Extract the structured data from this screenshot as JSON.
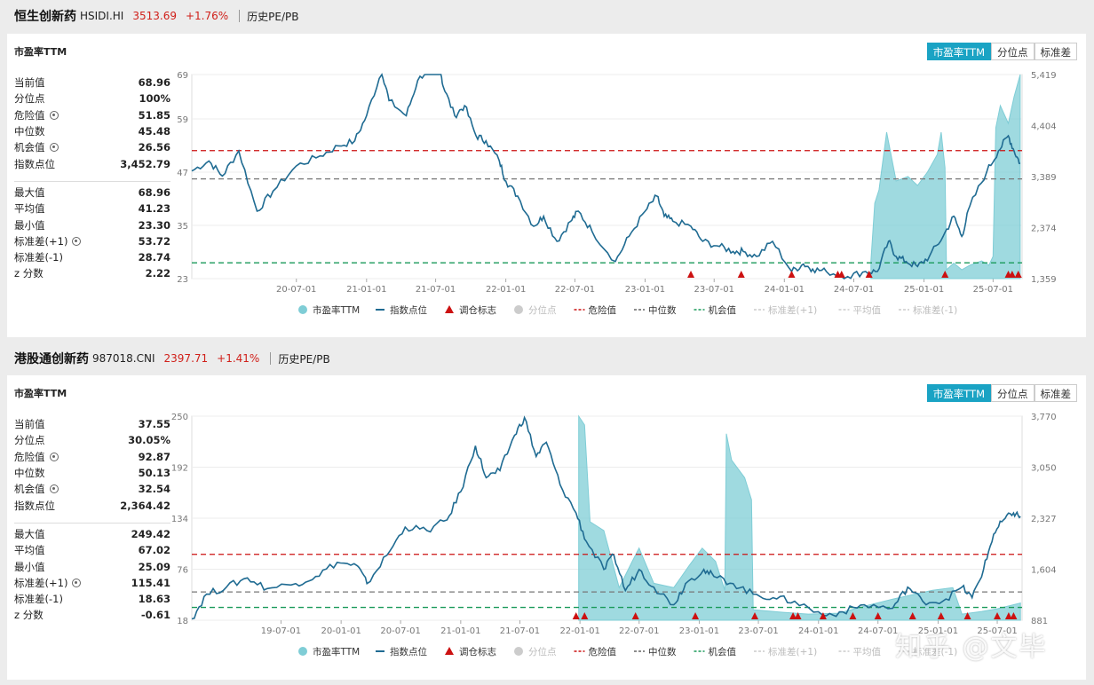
{
  "panels": [
    {
      "header": {
        "name": "恒生创新药",
        "code": "HSIDI.HI",
        "price": "3513.69",
        "change": "+1.76%",
        "history": "历史PE/PB"
      },
      "title": "市盈率TTM",
      "tabs": [
        "市盈率TTM",
        "分位点",
        "标准差"
      ],
      "stats_top": [
        {
          "label": "当前值",
          "value": "68.96",
          "gear": false
        },
        {
          "label": "分位点",
          "value": "100%",
          "gear": false
        },
        {
          "label": "危险值",
          "value": "51.85",
          "gear": true
        },
        {
          "label": "中位数",
          "value": "45.48",
          "gear": false
        },
        {
          "label": "机会值",
          "value": "26.56",
          "gear": true
        },
        {
          "label": "指数点位",
          "value": "3,452.79",
          "gear": false
        }
      ],
      "stats_bottom": [
        {
          "label": "最大值",
          "value": "68.96",
          "gear": false
        },
        {
          "label": "平均值",
          "value": "41.23",
          "gear": false
        },
        {
          "label": "最小值",
          "value": "23.30",
          "gear": false
        },
        {
          "label": "标准差(+1)",
          "value": "53.72",
          "gear": true
        },
        {
          "label": "标准差(-1)",
          "value": "28.74",
          "gear": false
        },
        {
          "label": "z 分数",
          "value": "2.22",
          "gear": false
        }
      ]
    },
    {
      "header": {
        "name": "港股通创新药",
        "code": "987018.CNI",
        "price": "2397.71",
        "change": "+1.41%",
        "history": "历史PE/PB"
      },
      "title": "市盈率TTM",
      "tabs": [
        "市盈率TTM",
        "分位点",
        "标准差"
      ],
      "stats_top": [
        {
          "label": "当前值",
          "value": "37.55",
          "gear": false
        },
        {
          "label": "分位点",
          "value": "30.05%",
          "gear": false
        },
        {
          "label": "危险值",
          "value": "92.87",
          "gear": true
        },
        {
          "label": "中位数",
          "value": "50.13",
          "gear": false
        },
        {
          "label": "机会值",
          "value": "32.54",
          "gear": true
        },
        {
          "label": "指数点位",
          "value": "2,364.42",
          "gear": false
        }
      ],
      "stats_bottom": [
        {
          "label": "最大值",
          "value": "249.42",
          "gear": false
        },
        {
          "label": "平均值",
          "value": "67.02",
          "gear": false
        },
        {
          "label": "最小值",
          "value": "25.09",
          "gear": false
        },
        {
          "label": "标准差(+1)",
          "value": "115.41",
          "gear": true
        },
        {
          "label": "标准差(-1)",
          "value": "18.63",
          "gear": false
        },
        {
          "label": "z 分数",
          "value": "-0.61",
          "gear": false
        }
      ]
    }
  ],
  "legend": [
    {
      "label": "市盈率TTM",
      "kind": "dot",
      "color": "#7fcdd6",
      "muted": false
    },
    {
      "label": "指数点位",
      "kind": "line",
      "color": "#1f6b92",
      "muted": false
    },
    {
      "label": "调仓标志",
      "kind": "tri",
      "color": "#cc1111",
      "muted": false
    },
    {
      "label": "分位点",
      "kind": "dot",
      "color": "#cccccc",
      "muted": true
    },
    {
      "label": "危险值",
      "kind": "dash",
      "color": "#cc1111",
      "muted": false
    },
    {
      "label": "中位数",
      "kind": "dash",
      "color": "#666666",
      "muted": false
    },
    {
      "label": "机会值",
      "kind": "dash",
      "color": "#1a9a5a",
      "muted": false
    },
    {
      "label": "标准差(+1)",
      "kind": "dash",
      "color": "#cccccc",
      "muted": true
    },
    {
      "label": "平均值",
      "kind": "dash",
      "color": "#cccccc",
      "muted": true
    },
    {
      "label": "标准差(-1)",
      "kind": "dash",
      "color": "#cccccc",
      "muted": true
    }
  ],
  "watermark": "知乎 @文毕",
  "chart_data": [
    {
      "type": "line",
      "pe_color": "#7fcdd6",
      "index_color": "#1f6b92",
      "x_ticks": [
        "20-07-01",
        "21-01-01",
        "21-07-01",
        "22-01-01",
        "22-07-01",
        "23-01-01",
        "23-07-01",
        "24-01-01",
        "24-07-01",
        "25-01-01",
        "25-07-01"
      ],
      "xlim": [
        "2019-10-01",
        "2025-09-15"
      ],
      "ylim_left": [
        23,
        69
      ],
      "left_ticks": [
        "69",
        "59",
        "47",
        "35",
        "23"
      ],
      "left_tick_values": [
        69,
        59,
        47,
        35,
        23
      ],
      "ylim_right": [
        1359,
        5419
      ],
      "right_ticks": [
        "5,419",
        "4,404",
        "3,389",
        "2,374",
        "1,359"
      ],
      "right_tick_values": [
        5419,
        4404,
        3389,
        2374,
        1359
      ],
      "lines": {
        "danger": 51.85,
        "median": 45.48,
        "opportunity": 26.56
      },
      "index_series": [
        [
          "2019-10-01",
          3500
        ],
        [
          "2019-11-15",
          3700
        ],
        [
          "2019-12-20",
          3400
        ],
        [
          "2020-02-01",
          3900
        ],
        [
          "2020-03-20",
          2700
        ],
        [
          "2020-05-01",
          3100
        ],
        [
          "2020-07-01",
          3600
        ],
        [
          "2020-09-01",
          3800
        ],
        [
          "2020-10-20",
          4000
        ],
        [
          "2020-12-01",
          4100
        ],
        [
          "2021-01-01",
          4600
        ],
        [
          "2021-02-10",
          5500
        ],
        [
          "2021-03-01",
          4900
        ],
        [
          "2021-04-15",
          4600
        ],
        [
          "2021-05-15",
          5300
        ],
        [
          "2021-06-20",
          5600
        ],
        [
          "2021-07-10",
          5750
        ],
        [
          "2021-07-20",
          5200
        ],
        [
          "2021-08-20",
          4600
        ],
        [
          "2021-09-15",
          4800
        ],
        [
          "2021-10-15",
          4200
        ],
        [
          "2021-11-10",
          4100
        ],
        [
          "2021-12-15",
          3700
        ],
        [
          "2022-01-01",
          3300
        ],
        [
          "2022-02-01",
          3000
        ],
        [
          "2022-03-15",
          2400
        ],
        [
          "2022-04-10",
          2600
        ],
        [
          "2022-05-15",
          2100
        ],
        [
          "2022-06-20",
          2500
        ],
        [
          "2022-07-10",
          2700
        ],
        [
          "2022-08-15",
          2300
        ],
        [
          "2022-10-15",
          1700
        ],
        [
          "2022-11-20",
          2200
        ],
        [
          "2023-01-01",
          2700
        ],
        [
          "2023-02-01",
          3000
        ],
        [
          "2023-02-20",
          2600
        ],
        [
          "2023-03-15",
          2500
        ],
        [
          "2023-05-01",
          2400
        ],
        [
          "2023-06-01",
          2100
        ],
        [
          "2023-07-15",
          2000
        ],
        [
          "2023-08-20",
          1900
        ],
        [
          "2023-09-15",
          1900
        ],
        [
          "2023-10-20",
          1800
        ],
        [
          "2023-12-01",
          2100
        ],
        [
          "2024-01-20",
          1500
        ],
        [
          "2024-02-20",
          1650
        ],
        [
          "2024-03-15",
          1550
        ],
        [
          "2024-04-20",
          1500
        ],
        [
          "2024-06-15",
          1400
        ],
        [
          "2024-08-01",
          1500
        ],
        [
          "2024-09-01",
          1500
        ],
        [
          "2024-09-30",
          2100
        ],
        [
          "2024-10-20",
          1800
        ],
        [
          "2024-11-15",
          1700
        ],
        [
          "2024-12-15",
          1600
        ],
        [
          "2025-01-15",
          1800
        ],
        [
          "2025-02-20",
          2200
        ],
        [
          "2025-03-20",
          2600
        ],
        [
          "2025-04-10",
          2200
        ],
        [
          "2025-05-01",
          2800
        ],
        [
          "2025-06-15",
          3500
        ],
        [
          "2025-07-15",
          3900
        ],
        [
          "2025-08-10",
          4200
        ],
        [
          "2025-08-25",
          3900
        ],
        [
          "2025-09-10",
          3650
        ]
      ],
      "pe_series": [
        [
          "2024-08-15",
          27
        ],
        [
          "2024-08-25",
          40
        ],
        [
          "2024-09-05",
          43
        ],
        [
          "2024-09-25",
          56
        ],
        [
          "2024-10-20",
          45
        ],
        [
          "2024-11-20",
          46
        ],
        [
          "2024-12-15",
          44
        ],
        [
          "2025-01-10",
          47
        ],
        [
          "2025-02-05",
          51
        ],
        [
          "2025-02-15",
          56
        ],
        [
          "2025-02-25",
          48
        ],
        [
          "2025-03-01",
          25
        ],
        [
          "2025-03-20",
          26.5
        ],
        [
          "2025-04-10",
          25
        ],
        [
          "2025-05-01",
          26
        ],
        [
          "2025-06-01",
          27
        ],
        [
          "2025-06-20",
          26
        ],
        [
          "2025-07-01",
          28
        ],
        [
          "2025-07-08",
          57
        ],
        [
          "2025-07-20",
          62
        ],
        [
          "2025-08-10",
          58
        ],
        [
          "2025-08-25",
          64
        ],
        [
          "2025-09-10",
          69
        ]
      ],
      "markers": [
        "2023-05-01",
        "2023-09-10",
        "2024-01-20",
        "2024-05-20",
        "2024-05-30",
        "2024-08-10",
        "2025-02-25",
        "2025-08-10",
        "2025-08-20",
        "2025-09-05"
      ]
    },
    {
      "type": "line",
      "pe_color": "#7fcdd6",
      "index_color": "#1f6b92",
      "x_ticks": [
        "19-07-01",
        "20-01-01",
        "20-07-01",
        "21-01-01",
        "21-07-01",
        "22-01-01",
        "22-07-01",
        "23-01-01",
        "23-07-01",
        "24-01-01",
        "24-07-01",
        "25-01-01",
        "25-07-01"
      ],
      "xlim": [
        "2018-10-01",
        "2025-09-15"
      ],
      "ylim_left": [
        18,
        250
      ],
      "left_ticks": [
        "250",
        "192",
        "134",
        "76",
        "18"
      ],
      "left_tick_values": [
        250,
        192,
        134,
        76,
        18
      ],
      "ylim_right": [
        881,
        3770
      ],
      "right_ticks": [
        "3,770",
        "3,050",
        "2,327",
        "1,604",
        "881"
      ],
      "right_tick_values": [
        3770,
        3050,
        2327,
        1604,
        881
      ],
      "lines": {
        "danger": 92.87,
        "median": 50.13,
        "opportunity": 32.54
      },
      "index_series": [
        [
          "2018-10-01",
          900
        ],
        [
          "2018-11-15",
          1250
        ],
        [
          "2019-01-15",
          1350
        ],
        [
          "2019-03-20",
          1480
        ],
        [
          "2019-05-20",
          1330
        ],
        [
          "2019-08-15",
          1400
        ],
        [
          "2019-10-15",
          1500
        ],
        [
          "2019-12-20",
          1700
        ],
        [
          "2020-02-20",
          1650
        ],
        [
          "2020-03-20",
          1400
        ],
        [
          "2020-05-20",
          1800
        ],
        [
          "2020-07-15",
          2200
        ],
        [
          "2020-09-20",
          2150
        ],
        [
          "2020-11-20",
          2300
        ],
        [
          "2021-01-01",
          2700
        ],
        [
          "2021-02-15",
          3350
        ],
        [
          "2021-03-20",
          2900
        ],
        [
          "2021-05-01",
          3000
        ],
        [
          "2021-06-15",
          3500
        ],
        [
          "2021-07-15",
          3750
        ],
        [
          "2021-08-20",
          3200
        ],
        [
          "2021-09-20",
          3400
        ],
        [
          "2021-11-01",
          2800
        ],
        [
          "2021-12-20",
          2400
        ],
        [
          "2022-01-20",
          2000
        ],
        [
          "2022-03-15",
          1600
        ],
        [
          "2022-04-15",
          1800
        ],
        [
          "2022-05-20",
          1300
        ],
        [
          "2022-07-01",
          1600
        ],
        [
          "2022-08-15",
          1350
        ],
        [
          "2022-10-15",
          1100
        ],
        [
          "2022-11-20",
          1400
        ],
        [
          "2023-01-15",
          1600
        ],
        [
          "2023-02-15",
          1500
        ],
        [
          "2023-04-15",
          1400
        ],
        [
          "2023-06-15",
          1250
        ],
        [
          "2023-08-15",
          1200
        ],
        [
          "2023-10-20",
          1150
        ],
        [
          "2024-01-15",
          950
        ],
        [
          "2024-03-15",
          1000
        ],
        [
          "2024-05-20",
          1100
        ],
        [
          "2024-08-15",
          1050
        ],
        [
          "2024-09-30",
          1350
        ],
        [
          "2024-11-15",
          1150
        ],
        [
          "2025-01-15",
          1150
        ],
        [
          "2025-03-15",
          1350
        ],
        [
          "2025-04-15",
          1200
        ],
        [
          "2025-05-20",
          1600
        ],
        [
          "2025-06-20",
          2100
        ],
        [
          "2025-07-20",
          2300
        ],
        [
          "2025-08-20",
          2400
        ],
        [
          "2025-09-10",
          2350
        ]
      ],
      "pe_series": [
        [
          "2021-12-28",
          250
        ],
        [
          "2022-01-15",
          240
        ],
        [
          "2022-02-01",
          130
        ],
        [
          "2022-03-15",
          120
        ],
        [
          "2022-05-01",
          55
        ],
        [
          "2022-06-10",
          85
        ],
        [
          "2022-07-01",
          100
        ],
        [
          "2022-08-15",
          60
        ],
        [
          "2022-10-15",
          55
        ],
        [
          "2022-12-01",
          80
        ],
        [
          "2023-01-10",
          100
        ],
        [
          "2023-02-20",
          85
        ],
        [
          "2023-03-20",
          52
        ],
        [
          "2023-03-25",
          230
        ],
        [
          "2023-04-10",
          200
        ],
        [
          "2023-05-20",
          180
        ],
        [
          "2023-06-10",
          155
        ],
        [
          "2023-06-15",
          30
        ],
        [
          "2023-09-15",
          27
        ],
        [
          "2023-12-01",
          25
        ],
        [
          "2024-03-01",
          26
        ],
        [
          "2024-06-01",
          35
        ],
        [
          "2024-08-15",
          42
        ],
        [
          "2024-10-15",
          47
        ],
        [
          "2024-12-15",
          52
        ],
        [
          "2025-02-15",
          55
        ],
        [
          "2025-03-15",
          25
        ],
        [
          "2025-05-15",
          28
        ],
        [
          "2025-07-01",
          31
        ],
        [
          "2025-09-10",
          37.55
        ]
      ],
      "markers": [
        "2021-12-20",
        "2022-01-15",
        "2022-06-20",
        "2022-12-20",
        "2023-06-20",
        "2023-10-15",
        "2023-10-30",
        "2024-01-15",
        "2024-04-15",
        "2024-07-01",
        "2024-10-15",
        "2025-01-10",
        "2025-04-01",
        "2025-07-01",
        "2025-08-05",
        "2025-08-20"
      ]
    }
  ]
}
